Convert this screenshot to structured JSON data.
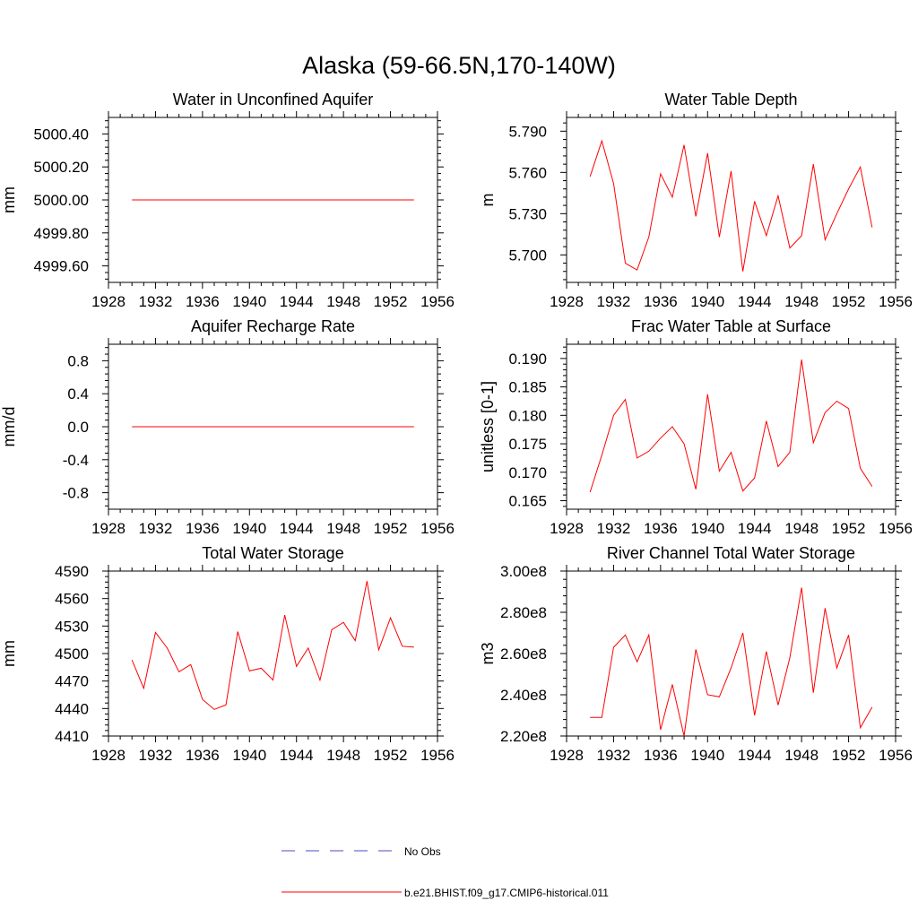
{
  "figure_title": "Alaska (59-66.5N,170-140W)",
  "colors": {
    "model": "#ff0000",
    "obs": "#4b4bc8",
    "axis": "#000000"
  },
  "legend": [
    {
      "label": "No Obs",
      "style": "dashed",
      "color": "#4b4bc8"
    },
    {
      "label": "b.e21.BHIST.f09_g17.CMIP6-historical.011",
      "style": "solid",
      "color": "#ff0000"
    }
  ],
  "chart_data": [
    {
      "id": "water-unconfined-aquifer",
      "type": "line",
      "title": "Water in Unconfined Aquifer",
      "ylabel": "mm",
      "xlim": [
        1928,
        1956
      ],
      "ylim": [
        4999.5,
        5000.5
      ],
      "xticks": [
        1928,
        1932,
        1936,
        1940,
        1944,
        1948,
        1952,
        1956
      ],
      "yticks": [
        4999.6,
        4999.8,
        5000.0,
        5000.2,
        5000.4
      ],
      "ytick_labels": [
        "4999.60",
        "4999.80",
        "5000.00",
        "5000.20",
        "5000.40"
      ],
      "x": [
        1930,
        1931,
        1932,
        1933,
        1934,
        1935,
        1936,
        1937,
        1938,
        1939,
        1940,
        1941,
        1942,
        1943,
        1944,
        1945,
        1946,
        1947,
        1948,
        1949,
        1950,
        1951,
        1952,
        1953,
        1954
      ],
      "series": [
        {
          "values": [
            5000,
            5000,
            5000,
            5000,
            5000,
            5000,
            5000,
            5000,
            5000,
            5000,
            5000,
            5000,
            5000,
            5000,
            5000,
            5000,
            5000,
            5000,
            5000,
            5000,
            5000,
            5000,
            5000,
            5000,
            5000
          ]
        }
      ]
    },
    {
      "id": "water-table-depth",
      "type": "line",
      "title": "Water Table Depth",
      "ylabel": "m",
      "xlim": [
        1928,
        1956
      ],
      "ylim": [
        5.68,
        5.8
      ],
      "xticks": [
        1928,
        1932,
        1936,
        1940,
        1944,
        1948,
        1952,
        1956
      ],
      "yticks": [
        5.7,
        5.73,
        5.76,
        5.79
      ],
      "ytick_labels": [
        "5.700",
        "5.730",
        "5.760",
        "5.790"
      ],
      "x": [
        1930,
        1931,
        1932,
        1933,
        1934,
        1935,
        1936,
        1937,
        1938,
        1939,
        1940,
        1941,
        1942,
        1943,
        1944,
        1945,
        1946,
        1947,
        1948,
        1949,
        1950,
        1951,
        1952,
        1953,
        1954
      ],
      "series": [
        {
          "values": [
            5.757,
            5.783,
            5.752,
            5.694,
            5.689,
            5.713,
            5.759,
            5.742,
            5.78,
            5.728,
            5.774,
            5.713,
            5.761,
            5.688,
            5.739,
            5.714,
            5.743,
            5.705,
            5.714,
            5.766,
            5.711,
            5.73,
            5.748,
            5.764,
            5.72
          ]
        }
      ]
    },
    {
      "id": "aquifer-recharge-rate",
      "type": "line",
      "title": "Aquifer Recharge Rate",
      "ylabel": "mm/d",
      "xlim": [
        1928,
        1956
      ],
      "ylim": [
        -1.0,
        1.0
      ],
      "xticks": [
        1928,
        1932,
        1936,
        1940,
        1944,
        1948,
        1952,
        1956
      ],
      "yticks": [
        -0.8,
        -0.4,
        0.0,
        0.4,
        0.8
      ],
      "ytick_labels": [
        "-0.8",
        "-0.4",
        "0.0",
        "0.4",
        "0.8"
      ],
      "x": [
        1930,
        1931,
        1932,
        1933,
        1934,
        1935,
        1936,
        1937,
        1938,
        1939,
        1940,
        1941,
        1942,
        1943,
        1944,
        1945,
        1946,
        1947,
        1948,
        1949,
        1950,
        1951,
        1952,
        1953,
        1954
      ],
      "series": [
        {
          "values": [
            0,
            0,
            0,
            0,
            0,
            0,
            0,
            0,
            0,
            0,
            0,
            0,
            0,
            0,
            0,
            0,
            0,
            0,
            0,
            0,
            0,
            0,
            0,
            0,
            0
          ]
        }
      ]
    },
    {
      "id": "frac-water-table-surface",
      "type": "line",
      "title": "Frac Water Table at Surface",
      "ylabel": "unitless [0-1]",
      "xlim": [
        1928,
        1956
      ],
      "ylim": [
        0.1635,
        0.1925
      ],
      "xticks": [
        1928,
        1932,
        1936,
        1940,
        1944,
        1948,
        1952,
        1956
      ],
      "yticks": [
        0.165,
        0.17,
        0.175,
        0.18,
        0.185,
        0.19
      ],
      "ytick_labels": [
        "0.165",
        "0.170",
        "0.175",
        "0.180",
        "0.185",
        "0.190"
      ],
      "x": [
        1930,
        1931,
        1932,
        1933,
        1934,
        1935,
        1936,
        1937,
        1938,
        1939,
        1940,
        1941,
        1942,
        1943,
        1944,
        1945,
        1946,
        1947,
        1948,
        1949,
        1950,
        1951,
        1952,
        1953,
        1954
      ],
      "series": [
        {
          "values": [
            0.1665,
            0.173,
            0.18,
            0.1828,
            0.1725,
            0.1737,
            0.176,
            0.178,
            0.175,
            0.167,
            0.1837,
            0.1702,
            0.1735,
            0.1667,
            0.169,
            0.179,
            0.171,
            0.1735,
            0.1898,
            0.1752,
            0.1805,
            0.1825,
            0.1812,
            0.1707,
            0.1675
          ]
        }
      ]
    },
    {
      "id": "total-water-storage",
      "type": "line",
      "title": "Total Water Storage",
      "ylabel": "mm",
      "xlim": [
        1928,
        1956
      ],
      "ylim": [
        4410,
        4590
      ],
      "xticks": [
        1928,
        1932,
        1936,
        1940,
        1944,
        1948,
        1952,
        1956
      ],
      "yticks": [
        4410,
        4440,
        4470,
        4500,
        4530,
        4560,
        4590
      ],
      "ytick_labels": [
        "4410",
        "4440",
        "4470",
        "4500",
        "4530",
        "4560",
        "4590"
      ],
      "x": [
        1930,
        1931,
        1932,
        1933,
        1934,
        1935,
        1936,
        1937,
        1938,
        1939,
        1940,
        1941,
        1942,
        1943,
        1944,
        1945,
        1946,
        1947,
        1948,
        1949,
        1950,
        1951,
        1952,
        1953,
        1954
      ],
      "series": [
        {
          "values": [
            4493,
            4462,
            4523,
            4506,
            4480,
            4488,
            4450,
            4439,
            4444,
            4524,
            4481,
            4484,
            4471,
            4542,
            4486,
            4506,
            4471,
            4526,
            4534,
            4514,
            4579,
            4504,
            4539,
            4508,
            4507
          ]
        }
      ]
    },
    {
      "id": "river-channel-storage",
      "type": "line",
      "title": "River Channel Total Water Storage",
      "ylabel": "m3",
      "xlim": [
        1928,
        1956
      ],
      "ylim": [
        220000000.0,
        300000000.0
      ],
      "xticks": [
        1928,
        1932,
        1936,
        1940,
        1944,
        1948,
        1952,
        1956
      ],
      "yticks": [
        220000000.0,
        240000000.0,
        260000000.0,
        280000000.0,
        300000000.0
      ],
      "ytick_labels": [
        "2.20e8",
        "2.40e8",
        "2.60e8",
        "2.80e8",
        "3.00e8"
      ],
      "x": [
        1930,
        1931,
        1932,
        1933,
        1934,
        1935,
        1936,
        1937,
        1938,
        1939,
        1940,
        1941,
        1942,
        1943,
        1944,
        1945,
        1946,
        1947,
        1948,
        1949,
        1950,
        1951,
        1952,
        1953,
        1954
      ],
      "series": [
        {
          "values": [
            229000000.0,
            229000000.0,
            263000000.0,
            269000000.0,
            256000000.0,
            269000000.0,
            223000000.0,
            245000000.0,
            220000000.0,
            262000000.0,
            240000000.0,
            239000000.0,
            253000000.0,
            270000000.0,
            230000000.0,
            261000000.0,
            235000000.0,
            258000000.0,
            292000000.0,
            241000000.0,
            282000000.0,
            253000000.0,
            269000000.0,
            224000000.0,
            234000000.0
          ]
        }
      ]
    }
  ]
}
